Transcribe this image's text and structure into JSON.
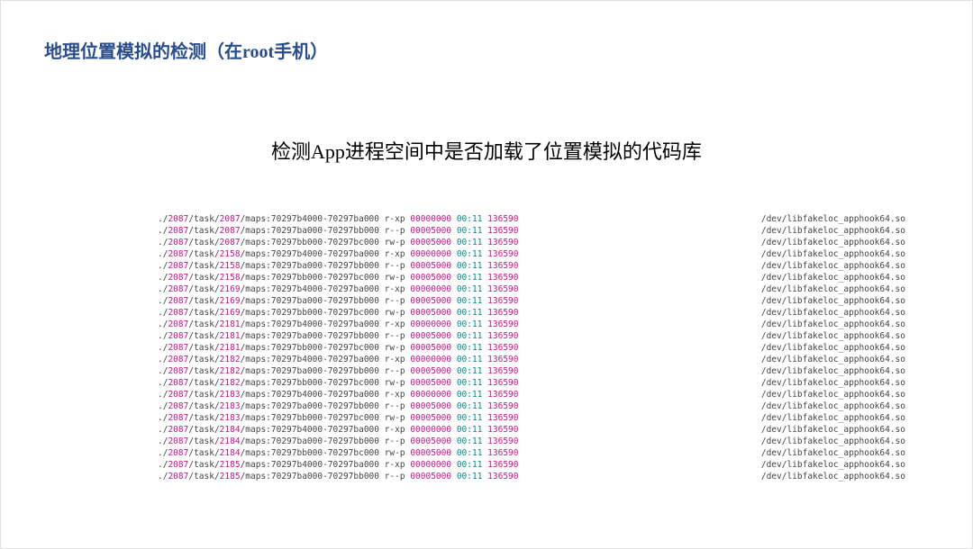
{
  "title": "地理位置模拟的检测（在root手机）",
  "subtitle": "检测App进程空间中是否加载了位置模拟的代码库",
  "colors": {
    "title_color": "#2a4d8c",
    "subtitle_color": "#000000",
    "background": "#ffffff",
    "text_default": "#444444",
    "pid_color": "#c71585",
    "addr_color": "#c71585",
    "time_color": "#008b8b",
    "num_color": "#c71585"
  },
  "fonts": {
    "title_size": 20,
    "subtitle_size": 22,
    "terminal_size": 9.5,
    "terminal_family": "monospace"
  },
  "terminal": {
    "basePid": "2087",
    "pathLabel": "/dev/libfakeloc_apphook64.so",
    "rows": [
      {
        "task": "2087",
        "range": "70297b4000-70297ba000",
        "perm": "r-xp",
        "addr": "00000000",
        "time": "00:11",
        "num": "136590"
      },
      {
        "task": "2087",
        "range": "70297ba000-70297bb000",
        "perm": "r--p",
        "addr": "00005000",
        "time": "00:11",
        "num": "136590"
      },
      {
        "task": "2087",
        "range": "70297bb000-70297bc000",
        "perm": "rw-p",
        "addr": "00005000",
        "time": "00:11",
        "num": "136590"
      },
      {
        "task": "2158",
        "range": "70297b4000-70297ba000",
        "perm": "r-xp",
        "addr": "00000000",
        "time": "00:11",
        "num": "136590"
      },
      {
        "task": "2158",
        "range": "70297ba000-70297bb000",
        "perm": "r--p",
        "addr": "00005000",
        "time": "00:11",
        "num": "136590"
      },
      {
        "task": "2158",
        "range": "70297bb000-70297bc000",
        "perm": "rw-p",
        "addr": "00005000",
        "time": "00:11",
        "num": "136590"
      },
      {
        "task": "2169",
        "range": "70297b4000-70297ba000",
        "perm": "r-xp",
        "addr": "00000000",
        "time": "00:11",
        "num": "136590"
      },
      {
        "task": "2169",
        "range": "70297ba000-70297bb000",
        "perm": "r--p",
        "addr": "00005000",
        "time": "00:11",
        "num": "136590"
      },
      {
        "task": "2169",
        "range": "70297bb000-70297bc000",
        "perm": "rw-p",
        "addr": "00005000",
        "time": "00:11",
        "num": "136590"
      },
      {
        "task": "2181",
        "range": "70297b4000-70297ba000",
        "perm": "r-xp",
        "addr": "00000000",
        "time": "00:11",
        "num": "136590"
      },
      {
        "task": "2181",
        "range": "70297ba000-70297bb000",
        "perm": "r--p",
        "addr": "00005000",
        "time": "00:11",
        "num": "136590"
      },
      {
        "task": "2181",
        "range": "70297bb000-70297bc000",
        "perm": "rw-p",
        "addr": "00005000",
        "time": "00:11",
        "num": "136590"
      },
      {
        "task": "2182",
        "range": "70297b4000-70297ba000",
        "perm": "r-xp",
        "addr": "00000000",
        "time": "00:11",
        "num": "136590"
      },
      {
        "task": "2182",
        "range": "70297ba000-70297bb000",
        "perm": "r--p",
        "addr": "00005000",
        "time": "00:11",
        "num": "136590"
      },
      {
        "task": "2182",
        "range": "70297bb000-70297bc000",
        "perm": "rw-p",
        "addr": "00005000",
        "time": "00:11",
        "num": "136590"
      },
      {
        "task": "2183",
        "range": "70297b4000-70297ba000",
        "perm": "r-xp",
        "addr": "00000000",
        "time": "00:11",
        "num": "136590"
      },
      {
        "task": "2183",
        "range": "70297ba000-70297bb000",
        "perm": "r--p",
        "addr": "00005000",
        "time": "00:11",
        "num": "136590"
      },
      {
        "task": "2183",
        "range": "70297bb000-70297bc000",
        "perm": "rw-p",
        "addr": "00005000",
        "time": "00:11",
        "num": "136590"
      },
      {
        "task": "2184",
        "range": "70297b4000-70297ba000",
        "perm": "r-xp",
        "addr": "00000000",
        "time": "00:11",
        "num": "136590"
      },
      {
        "task": "2184",
        "range": "70297ba000-70297bb000",
        "perm": "r--p",
        "addr": "00005000",
        "time": "00:11",
        "num": "136590"
      },
      {
        "task": "2184",
        "range": "70297bb000-70297bc000",
        "perm": "rw-p",
        "addr": "00005000",
        "time": "00:11",
        "num": "136590"
      },
      {
        "task": "2185",
        "range": "70297b4000-70297ba000",
        "perm": "r-xp",
        "addr": "00000000",
        "time": "00:11",
        "num": "136590"
      },
      {
        "task": "2185",
        "range": "70297ba000-70297bb000",
        "perm": "r--p",
        "addr": "00005000",
        "time": "00:11",
        "num": "136590"
      }
    ]
  }
}
